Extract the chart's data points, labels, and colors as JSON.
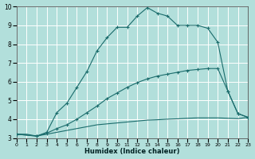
{
  "xlabel": "Humidex (Indice chaleur)",
  "bg_color": "#b2dfdb",
  "grid_color": "#ffffff",
  "line_color": "#1a6b6b",
  "xlim": [
    0,
    23
  ],
  "ylim": [
    3,
    10
  ],
  "xticks": [
    0,
    1,
    2,
    3,
    4,
    5,
    6,
    7,
    8,
    9,
    10,
    11,
    12,
    13,
    14,
    15,
    16,
    17,
    18,
    19,
    20,
    21,
    22,
    23
  ],
  "yticks": [
    3,
    4,
    5,
    6,
    7,
    8,
    9,
    10
  ],
  "curve_bottom_x": [
    0,
    1,
    2,
    3,
    4,
    5,
    6,
    7,
    8,
    9,
    10,
    11,
    12,
    13,
    14,
    15,
    16,
    17,
    18,
    19,
    20,
    21,
    22,
    23
  ],
  "curve_bottom_y": [
    3.2,
    3.2,
    3.1,
    3.2,
    3.3,
    3.4,
    3.5,
    3.6,
    3.7,
    3.75,
    3.8,
    3.85,
    3.9,
    3.95,
    3.97,
    4.0,
    4.02,
    4.05,
    4.07,
    4.07,
    4.07,
    4.05,
    4.03,
    4.1
  ],
  "curve_mid_x": [
    0,
    2,
    3,
    4,
    5,
    6,
    7,
    8,
    9,
    10,
    11,
    12,
    13,
    14,
    15,
    16,
    17,
    18,
    19,
    20,
    21,
    22,
    23
  ],
  "curve_mid_y": [
    3.2,
    3.1,
    3.25,
    3.5,
    3.7,
    4.0,
    4.35,
    4.7,
    5.1,
    5.4,
    5.7,
    5.95,
    6.15,
    6.3,
    6.4,
    6.5,
    6.6,
    6.65,
    6.7,
    6.7,
    5.5,
    4.3,
    4.1
  ],
  "curve_top_x": [
    0,
    2,
    3,
    4,
    5,
    6,
    7,
    8,
    9,
    10,
    11,
    12,
    13,
    14,
    15,
    16,
    17,
    18,
    19,
    20,
    21,
    22,
    23
  ],
  "curve_top_y": [
    3.2,
    3.1,
    3.3,
    4.35,
    4.85,
    5.7,
    6.55,
    7.65,
    8.35,
    8.9,
    8.9,
    9.5,
    9.95,
    9.65,
    9.5,
    9.0,
    9.0,
    9.0,
    8.85,
    8.1,
    5.5,
    4.3,
    4.1
  ]
}
